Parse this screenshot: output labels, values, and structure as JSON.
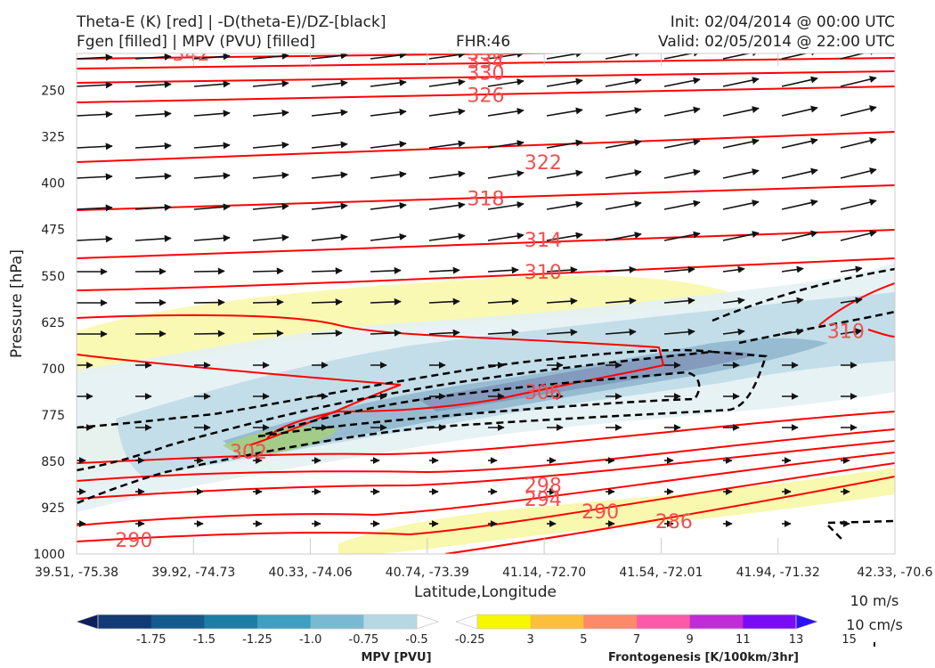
{
  "header": {
    "title_line1": "Theta-E (K) [red] | -D(theta-E)/DZ-[black]",
    "title_line2": "Fgen [filled] | MPV (PVU) [filled]",
    "fhr": "FHR:46",
    "init": "Init: 02/04/2014 @ 00:00 UTC",
    "valid": "Valid: 02/05/2014 @ 22:00 UTC"
  },
  "chart_data": {
    "type": "cross-section",
    "xlabel": "Latitude,Longitude",
    "ylabel": "Pressure [hPa]",
    "x_ticks": [
      "39.51, -75.38",
      "39.92, -74.73",
      "40.33, -74.06",
      "40.74, -73.39",
      "41.14, -72.70",
      "41.54, -72.01",
      "41.94, -71.32",
      "42.33, -70.6"
    ],
    "y_ticks": [
      250,
      325,
      400,
      475,
      550,
      625,
      700,
      775,
      850,
      925,
      1000
    ],
    "ylim": [
      1000,
      190
    ],
    "y_scale": "linear-inverted",
    "theta_e_contours": {
      "color": "#ff0000",
      "labels": [
        {
          "value": "342",
          "x": 0.14,
          "p": 190
        },
        {
          "value": "338",
          "x": 0.5,
          "p": 188
        },
        {
          "value": "334",
          "x": 0.5,
          "p": 202
        },
        {
          "value": "330",
          "x": 0.5,
          "p": 221
        },
        {
          "value": "326",
          "x": 0.5,
          "p": 257
        },
        {
          "value": "322",
          "x": 0.57,
          "p": 366
        },
        {
          "value": "318",
          "x": 0.5,
          "p": 424
        },
        {
          "value": "314",
          "x": 0.57,
          "p": 491
        },
        {
          "value": "310",
          "x": 0.57,
          "p": 543
        },
        {
          "value": "310",
          "x": 0.94,
          "p": 639
        },
        {
          "value": "306",
          "x": 0.57,
          "p": 738
        },
        {
          "value": "302",
          "x": 0.21,
          "p": 834
        },
        {
          "value": "298",
          "x": 0.57,
          "p": 888
        },
        {
          "value": "294",
          "x": 0.57,
          "p": 911
        },
        {
          "value": "290",
          "x": 0.64,
          "p": 931
        },
        {
          "value": "290",
          "x": 0.07,
          "p": 977
        },
        {
          "value": "286",
          "x": 0.73,
          "p": 947
        }
      ]
    },
    "wind_scale": {
      "horizontal": "10 m/s",
      "vertical": "10 cm/s"
    },
    "colorbars": [
      {
        "title": "MPV [PVU]",
        "ticks": [
          "-1.75",
          "-1.5",
          "-1.25",
          "-1.0",
          "-0.75",
          "-0.5",
          "-0.25"
        ],
        "colors": [
          "#0d1f5c",
          "#123a75",
          "#155a8c",
          "#1b7fa5",
          "#3e9fc0",
          "#7ab9d2",
          "#b5d8e4",
          "#ffffff"
        ]
      },
      {
        "title": "Frontogenesis [K/100km/3hr]",
        "ticks": [
          "3",
          "5",
          "7",
          "9",
          "11",
          "13",
          "15"
        ],
        "colors": [
          "#ffffff",
          "#f7f703",
          "#fbbf3c",
          "#fb8a6a",
          "#fb5aa8",
          "#c12bd8",
          "#7a0cf5",
          "#2e10f8"
        ]
      }
    ]
  }
}
